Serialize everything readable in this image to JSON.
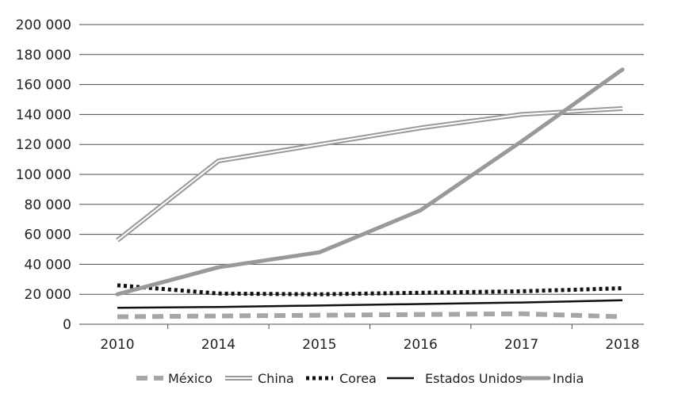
{
  "chart_data": {
    "type": "line",
    "title": "",
    "xlabel": "",
    "ylabel": "",
    "categories": [
      "2010",
      "2014",
      "2015",
      "2016",
      "2017",
      "2018"
    ],
    "ylim": [
      0,
      200000
    ],
    "y_ticks": [
      0,
      20000,
      40000,
      60000,
      80000,
      100000,
      120000,
      140000,
      160000,
      180000,
      200000
    ],
    "y_tick_labels": [
      "0",
      "20 000",
      "40 000",
      "60 000",
      "80 000",
      "100 000",
      "120 000",
      "140 000",
      "160 000",
      "180 000",
      "200 000"
    ],
    "grid": "horizontal",
    "legend_position": "bottom",
    "series": [
      {
        "name": "México",
        "values": [
          5000,
          5500,
          6000,
          6500,
          7000,
          5000
        ],
        "color": "#a6a6a6",
        "style": "dashed"
      },
      {
        "name": "China",
        "values": [
          56000,
          109000,
          120000,
          131000,
          140000,
          144000
        ],
        "color": "#999999",
        "style": "double"
      },
      {
        "name": "Corea",
        "values": [
          26000,
          20500,
          20000,
          21000,
          22000,
          24000
        ],
        "color": "#111111",
        "style": "dotted"
      },
      {
        "name": "Estados Unidos",
        "values": [
          11000,
          11500,
          12500,
          13500,
          14500,
          16000
        ],
        "color": "#111111",
        "style": "solid"
      },
      {
        "name": "India",
        "values": [
          20000,
          38000,
          48000,
          76000,
          122000,
          170000
        ],
        "color": "#999999",
        "style": "solid-thick"
      }
    ]
  }
}
